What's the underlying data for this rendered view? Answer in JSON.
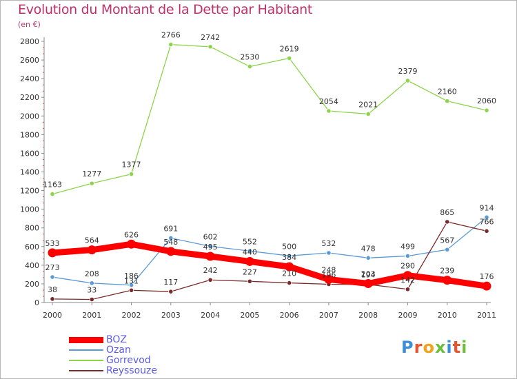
{
  "title": "Evolution du Montant de la Dette par Habitant",
  "subtitle": "(en €)",
  "logo": "Proxiti",
  "chart_data": {
    "type": "line",
    "title": "Evolution du Montant de la Dette par Habitant",
    "subtitle": "(en €)",
    "x": [
      "2000",
      "2001",
      "2002",
      "2003",
      "2004",
      "2005",
      "2006",
      "2007",
      "2008",
      "2009",
      "2010",
      "2011"
    ],
    "ylim": [
      0,
      2800
    ],
    "yticks": [
      0,
      200,
      400,
      600,
      800,
      1000,
      1200,
      1400,
      1600,
      1800,
      2000,
      2200,
      2400,
      2600,
      2800
    ],
    "grid": false,
    "legend_position": "bottom-left",
    "series": [
      {
        "name": "BOZ",
        "color": "#ff0000",
        "values": [
          533,
          564,
          626,
          548,
          495,
          440,
          384,
          248,
          203,
          290,
          239,
          176
        ],
        "labels": [
          "533",
          "564",
          "626",
          "548",
          "495",
          "440",
          "384",
          "248",
          "203",
          "290",
          "239",
          "176"
        ]
      },
      {
        "name": "Ozan",
        "color": "#5b9bd5",
        "values": [
          273,
          208,
          186,
          691,
          602,
          552,
          500,
          532,
          478,
          499,
          567,
          914
        ],
        "labels": [
          "273",
          "208",
          "186",
          "691",
          "602",
          "552",
          "500",
          "532",
          "478",
          "499",
          "567",
          "914"
        ]
      },
      {
        "name": "Gorrevod",
        "color": "#8cd44a",
        "values": [
          1163,
          1277,
          1377,
          2766,
          2742,
          2530,
          2619,
          2054,
          2021,
          2379,
          2160,
          2060
        ],
        "labels": [
          "1163",
          "1277",
          "1377",
          "2766",
          "2742",
          "2530",
          "2619",
          "2054",
          "2021",
          "2379",
          "2160",
          "2060"
        ]
      },
      {
        "name": "Reyssouze",
        "color": "#7a2a2a",
        "values": [
          38,
          33,
          131,
          117,
          242,
          227,
          210,
          196,
          194,
          142,
          865,
          766
        ],
        "labels": [
          "38",
          "33",
          "131",
          "117",
          "242",
          "227",
          "210",
          "196",
          "194",
          "142",
          "865",
          "766"
        ]
      }
    ]
  }
}
